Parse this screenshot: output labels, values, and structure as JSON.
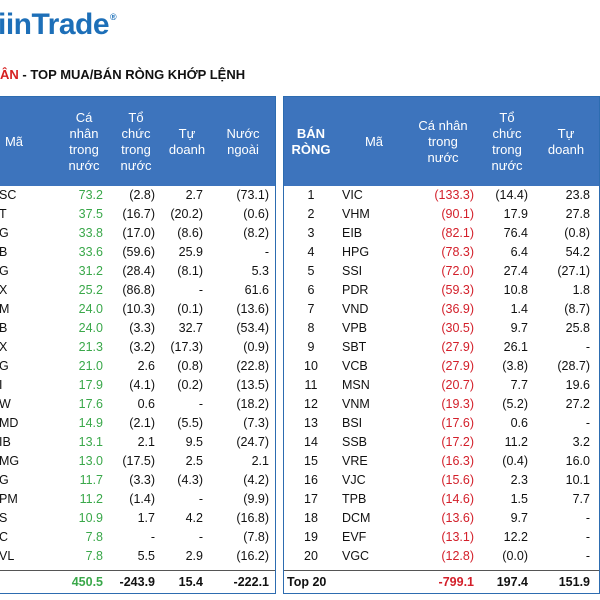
{
  "brand": {
    "logo_text": "iinTrade",
    "reg_mark": "®"
  },
  "title": {
    "accent": "ÂN",
    "rest": " - TOP MUA/BÁN RÒNG KHỚP LỆNH"
  },
  "colors": {
    "header_bg": "#3d74bd",
    "logo": "#1d6fb8",
    "positive": "#3aa84a",
    "negative": "#d31f2a"
  },
  "left_table": {
    "headers": {
      "ma": "Mã",
      "ca_nhan": "Cá\nnhân\ntrong\nnước",
      "to_chuc": "Tổ\nchức\ntrong\nnước",
      "tu_doanh": "Tự\ndoanh",
      "nuoc_ngoai": "Nước\nngoài"
    },
    "rows": [
      {
        "ma": "SC",
        "ca_nhan": "73.2",
        "to_chuc": "(2.8)",
        "tu_doanh": "2.7",
        "nuoc_ngoai": "(73.1)"
      },
      {
        "ma": "T",
        "ca_nhan": "37.5",
        "to_chuc": "(16.7)",
        "tu_doanh": "(20.2)",
        "nuoc_ngoai": "(0.6)"
      },
      {
        "ma": "G",
        "ca_nhan": "33.8",
        "to_chuc": "(17.0)",
        "tu_doanh": "(8.6)",
        "nuoc_ngoai": "(8.2)"
      },
      {
        "ma": "B",
        "ca_nhan": "33.6",
        "to_chuc": "(59.6)",
        "tu_doanh": "25.9",
        "nuoc_ngoai": "-"
      },
      {
        "ma": "G",
        "ca_nhan": "31.2",
        "to_chuc": "(28.4)",
        "tu_doanh": "(8.1)",
        "nuoc_ngoai": "5.3"
      },
      {
        "ma": "X",
        "ca_nhan": "25.2",
        "to_chuc": "(86.8)",
        "tu_doanh": "-",
        "nuoc_ngoai": "61.6"
      },
      {
        "ma": "M",
        "ca_nhan": "24.0",
        "to_chuc": "(10.3)",
        "tu_doanh": "(0.1)",
        "nuoc_ngoai": "(13.6)"
      },
      {
        "ma": "B",
        "ca_nhan": "24.0",
        "to_chuc": "(3.3)",
        "tu_doanh": "32.7",
        "nuoc_ngoai": "(53.4)"
      },
      {
        "ma": "X",
        "ca_nhan": "21.3",
        "to_chuc": "(3.2)",
        "tu_doanh": "(17.3)",
        "nuoc_ngoai": "(0.9)"
      },
      {
        "ma": "G",
        "ca_nhan": "21.0",
        "to_chuc": "2.6",
        "tu_doanh": "(0.8)",
        "nuoc_ngoai": "(22.8)"
      },
      {
        "ma": "I",
        "ca_nhan": "17.9",
        "to_chuc": "(4.1)",
        "tu_doanh": "(0.2)",
        "nuoc_ngoai": "(13.5)"
      },
      {
        "ma": "W",
        "ca_nhan": "17.6",
        "to_chuc": "0.6",
        "tu_doanh": "-",
        "nuoc_ngoai": "(18.2)"
      },
      {
        "ma": "MD",
        "ca_nhan": "14.9",
        "to_chuc": "(2.1)",
        "tu_doanh": "(5.5)",
        "nuoc_ngoai": "(7.3)"
      },
      {
        "ma": "IB",
        "ca_nhan": "13.1",
        "to_chuc": "2.1",
        "tu_doanh": "9.5",
        "nuoc_ngoai": "(24.7)"
      },
      {
        "ma": "MG",
        "ca_nhan": "13.0",
        "to_chuc": "(17.5)",
        "tu_doanh": "2.5",
        "nuoc_ngoai": "2.1"
      },
      {
        "ma": "G",
        "ca_nhan": "11.7",
        "to_chuc": "(3.3)",
        "tu_doanh": "(4.3)",
        "nuoc_ngoai": "(4.2)"
      },
      {
        "ma": "PM",
        "ca_nhan": "11.2",
        "to_chuc": "(1.4)",
        "tu_doanh": "-",
        "nuoc_ngoai": "(9.9)"
      },
      {
        "ma": "S",
        "ca_nhan": "10.9",
        "to_chuc": "1.7",
        "tu_doanh": "4.2",
        "nuoc_ngoai": "(16.8)"
      },
      {
        "ma": "C",
        "ca_nhan": "7.8",
        "to_chuc": "-",
        "tu_doanh": "-",
        "nuoc_ngoai": "(7.8)"
      },
      {
        "ma": "VL",
        "ca_nhan": "7.8",
        "to_chuc": "5.5",
        "tu_doanh": "2.9",
        "nuoc_ngoai": "(16.2)"
      }
    ],
    "total": {
      "ma": "",
      "ca_nhan": "450.5",
      "to_chuc": "-243.9",
      "tu_doanh": "15.4",
      "nuoc_ngoai": "-222.1"
    }
  },
  "right_table": {
    "headers": {
      "rank": "BÁN\nRÒNG",
      "ma": "Mã",
      "ca_nhan": "Cá nhân\ntrong\nnước",
      "to_chuc": "Tổ\nchức\ntrong\nnước",
      "tu_doanh": "Tự\ndoanh"
    },
    "rows": [
      {
        "rank": "1",
        "ma": "VIC",
        "ca_nhan": "(133.3)",
        "to_chuc": "(14.4)",
        "tu_doanh": "23.8"
      },
      {
        "rank": "2",
        "ma": "VHM",
        "ca_nhan": "(90.1)",
        "to_chuc": "17.9",
        "tu_doanh": "27.8"
      },
      {
        "rank": "3",
        "ma": "EIB",
        "ca_nhan": "(82.1)",
        "to_chuc": "76.4",
        "tu_doanh": "(0.8)"
      },
      {
        "rank": "4",
        "ma": "HPG",
        "ca_nhan": "(78.3)",
        "to_chuc": "6.4",
        "tu_doanh": "54.2"
      },
      {
        "rank": "5",
        "ma": "SSI",
        "ca_nhan": "(72.0)",
        "to_chuc": "27.4",
        "tu_doanh": "(27.1)"
      },
      {
        "rank": "6",
        "ma": "PDR",
        "ca_nhan": "(59.3)",
        "to_chuc": "10.8",
        "tu_doanh": "1.8"
      },
      {
        "rank": "7",
        "ma": "VND",
        "ca_nhan": "(36.9)",
        "to_chuc": "1.4",
        "tu_doanh": "(8.7)"
      },
      {
        "rank": "8",
        "ma": "VPB",
        "ca_nhan": "(30.5)",
        "to_chuc": "9.7",
        "tu_doanh": "25.8"
      },
      {
        "rank": "9",
        "ma": "SBT",
        "ca_nhan": "(27.9)",
        "to_chuc": "26.1",
        "tu_doanh": "-"
      },
      {
        "rank": "10",
        "ma": "VCB",
        "ca_nhan": "(27.9)",
        "to_chuc": "(3.8)",
        "tu_doanh": "(28.7)"
      },
      {
        "rank": "11",
        "ma": "MSN",
        "ca_nhan": "(20.7)",
        "to_chuc": "7.7",
        "tu_doanh": "19.6"
      },
      {
        "rank": "12",
        "ma": "VNM",
        "ca_nhan": "(19.3)",
        "to_chuc": "(5.2)",
        "tu_doanh": "27.2"
      },
      {
        "rank": "13",
        "ma": "BSI",
        "ca_nhan": "(17.6)",
        "to_chuc": "0.6",
        "tu_doanh": "-"
      },
      {
        "rank": "14",
        "ma": "SSB",
        "ca_nhan": "(17.2)",
        "to_chuc": "11.2",
        "tu_doanh": "3.2"
      },
      {
        "rank": "15",
        "ma": "VRE",
        "ca_nhan": "(16.3)",
        "to_chuc": "(0.4)",
        "tu_doanh": "16.0"
      },
      {
        "rank": "16",
        "ma": "VJC",
        "ca_nhan": "(15.6)",
        "to_chuc": "2.3",
        "tu_doanh": "10.1"
      },
      {
        "rank": "17",
        "ma": "TPB",
        "ca_nhan": "(14.6)",
        "to_chuc": "1.5",
        "tu_doanh": "7.7"
      },
      {
        "rank": "18",
        "ma": "DCM",
        "ca_nhan": "(13.6)",
        "to_chuc": "9.7",
        "tu_doanh": "-"
      },
      {
        "rank": "19",
        "ma": "EVF",
        "ca_nhan": "(13.1)",
        "to_chuc": "12.2",
        "tu_doanh": "-"
      },
      {
        "rank": "20",
        "ma": "VGC",
        "ca_nhan": "(12.8)",
        "to_chuc": "(0.0)",
        "tu_doanh": "-"
      }
    ],
    "total": {
      "label": "Top 20",
      "ca_nhan": "-799.1",
      "to_chuc": "197.4",
      "tu_doanh": "151.9"
    }
  }
}
